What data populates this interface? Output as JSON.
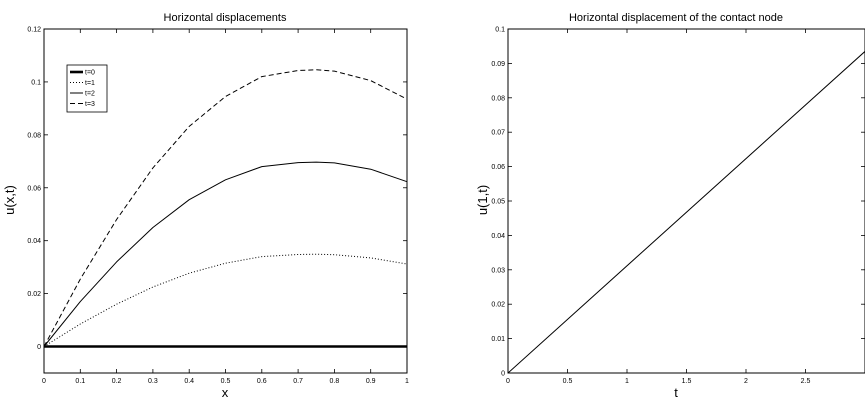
{
  "chart_data": [
    {
      "type": "line",
      "title": "Horizontal displacements",
      "xlabel": "x",
      "ylabel": "u(x,t)",
      "xlim": [
        0,
        1
      ],
      "ylim": [
        -0.01,
        0.12
      ],
      "xticks": [
        0,
        0.1,
        0.2,
        0.3,
        0.4,
        0.5,
        0.6,
        0.7,
        0.8,
        0.9,
        1
      ],
      "xtick_labels": [
        "0",
        "0.1",
        "0.2",
        "0.3",
        "0.4",
        "0.5",
        "0.6",
        "0.7",
        "0.8",
        "0.9",
        "1"
      ],
      "yticks": [
        0,
        0.02,
        0.04,
        0.06,
        0.08,
        0.1,
        0.12
      ],
      "ytick_labels": [
        "0",
        "0.02",
        "0.04",
        "0.06",
        "0.08",
        "0.1",
        "0.12"
      ],
      "grid": false,
      "legend_position": "top-left",
      "x": [
        0,
        0.1,
        0.2,
        0.3,
        0.4,
        0.5,
        0.6,
        0.7,
        0.75,
        0.8,
        0.9,
        1
      ],
      "series": [
        {
          "name": "t=0",
          "style": "solid-thick",
          "values": [
            0,
            0,
            0,
            0,
            0,
            0,
            0,
            0,
            0,
            0,
            0,
            0
          ]
        },
        {
          "name": "t=1",
          "style": "dotted",
          "values": [
            0,
            0.0085,
            0.016,
            0.0225,
            0.0277,
            0.0315,
            0.034,
            0.0348,
            0.0349,
            0.0347,
            0.0335,
            0.0312
          ]
        },
        {
          "name": "t=2",
          "style": "solid",
          "values": [
            0,
            0.017,
            0.032,
            0.045,
            0.0555,
            0.063,
            0.068,
            0.0695,
            0.0697,
            0.0694,
            0.067,
            0.0623
          ]
        },
        {
          "name": "t=3",
          "style": "dashed",
          "values": [
            0,
            0.0255,
            0.048,
            0.0675,
            0.0832,
            0.0945,
            0.102,
            0.1043,
            0.1046,
            0.1041,
            0.1005,
            0.0935
          ]
        }
      ]
    },
    {
      "type": "line",
      "title": "Horizontal displacement of the contact node",
      "xlabel": "t",
      "ylabel": "u(1,t)",
      "xlim": [
        0,
        3
      ],
      "ylim": [
        0,
        0.1
      ],
      "xticks": [
        0,
        0.5,
        1,
        1.5,
        2,
        2.5
      ],
      "xtick_labels": [
        "0",
        "0.5",
        "1",
        "1.5",
        "2",
        "2.5"
      ],
      "yticks": [
        0,
        0.01,
        0.02,
        0.03,
        0.04,
        0.05,
        0.06,
        0.07,
        0.08,
        0.09,
        0.1
      ],
      "ytick_labels": [
        "0",
        "0.01",
        "0.02",
        "0.03",
        "0.04",
        "0.05",
        "0.06",
        "0.07",
        "0.08",
        "0.09",
        "0.1"
      ],
      "grid": false,
      "series": [
        {
          "style": "solid",
          "x": [
            0,
            3
          ],
          "values": [
            0,
            0.0935
          ]
        }
      ]
    }
  ]
}
